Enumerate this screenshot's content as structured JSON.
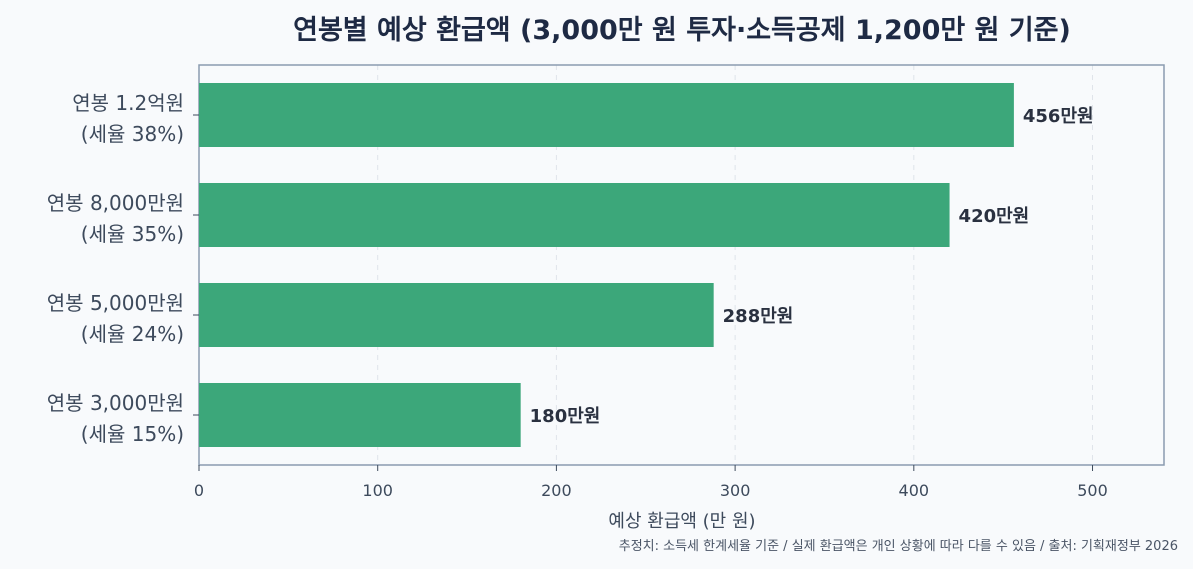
{
  "chart_data": {
    "type": "bar",
    "orientation": "horizontal",
    "title": "연봉별 예상 환급액 (3,000만 원 투자·소득공제 1,200만 원 기준)",
    "xlabel": "예상 환급액 (만 원)",
    "ylabel": "",
    "xlim": [
      0,
      540
    ],
    "xticks": [
      0,
      100,
      200,
      300,
      400,
      500
    ],
    "grid": "vertical-dashed",
    "categories": [
      [
        "연봉 1.2억원",
        "(세율 38%)"
      ],
      [
        "연봉 8,000만원",
        "(세율 35%)"
      ],
      [
        "연봉 5,000만원",
        "(세율 24%)"
      ],
      [
        "연봉 3,000만원",
        "(세율 15%)"
      ]
    ],
    "values": [
      456,
      420,
      288,
      180
    ],
    "data_labels": [
      "456만원",
      "420만원",
      "288만원",
      "180만원"
    ],
    "bar_color": "#3ca77a",
    "note": "추정치: 소득세 한계세율 기준 / 실제 환급액은 개인 상황에 따라 다를 수 있음 / 출처: 기획재정부 2026"
  }
}
